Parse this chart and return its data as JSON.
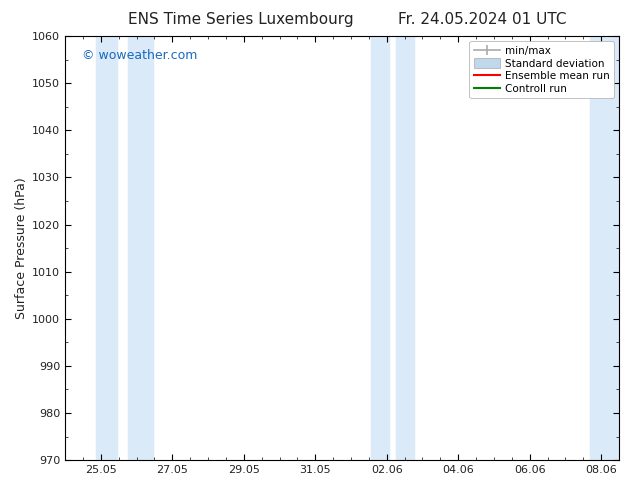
{
  "title_left": "ENS Time Series Luxembourg",
  "title_right": "Fr. 24.05.2024 01 UTC",
  "ylabel": "Surface Pressure (hPa)",
  "ylim": [
    970,
    1060
  ],
  "yticks": [
    970,
    980,
    990,
    1000,
    1010,
    1020,
    1030,
    1040,
    1050,
    1060
  ],
  "x_tick_labels": [
    "25.05",
    "27.05",
    "29.05",
    "31.05",
    "02.06",
    "04.06",
    "06.06",
    "08.06"
  ],
  "x_tick_positions": [
    0,
    2,
    4,
    6,
    8,
    10,
    12,
    14
  ],
  "x_min": -1,
  "x_max": 15,
  "shade_bands": [
    {
      "x_start": -0.5,
      "x_end": 0.5,
      "color": "#daeaf8"
    },
    {
      "x_start": 0.5,
      "x_end": 2.5,
      "color": "#daeaf8"
    },
    {
      "x_start": 7.5,
      "x_end": 8.5,
      "color": "#daeaf8"
    },
    {
      "x_start": 8.5,
      "x_end": 9.5,
      "color": "#daeaf8"
    },
    {
      "x_start": 13.5,
      "x_end": 15.0,
      "color": "#daeaf8"
    }
  ],
  "shade_color_light": "#daeaf8",
  "shade_color_dark": "#c8ddf0",
  "watermark_text": "© woweather.com",
  "watermark_color": "#1a6abf",
  "fig_width": 6.34,
  "fig_height": 4.9,
  "dpi": 100,
  "background_color": "#ffffff",
  "font_color": "#222222",
  "tick_color": "#000000",
  "legend_minmax_color": "#aaaaaa",
  "legend_std_color": "#c0d8ec",
  "legend_ens_color": "#ff0000",
  "legend_ctrl_color": "#008000"
}
